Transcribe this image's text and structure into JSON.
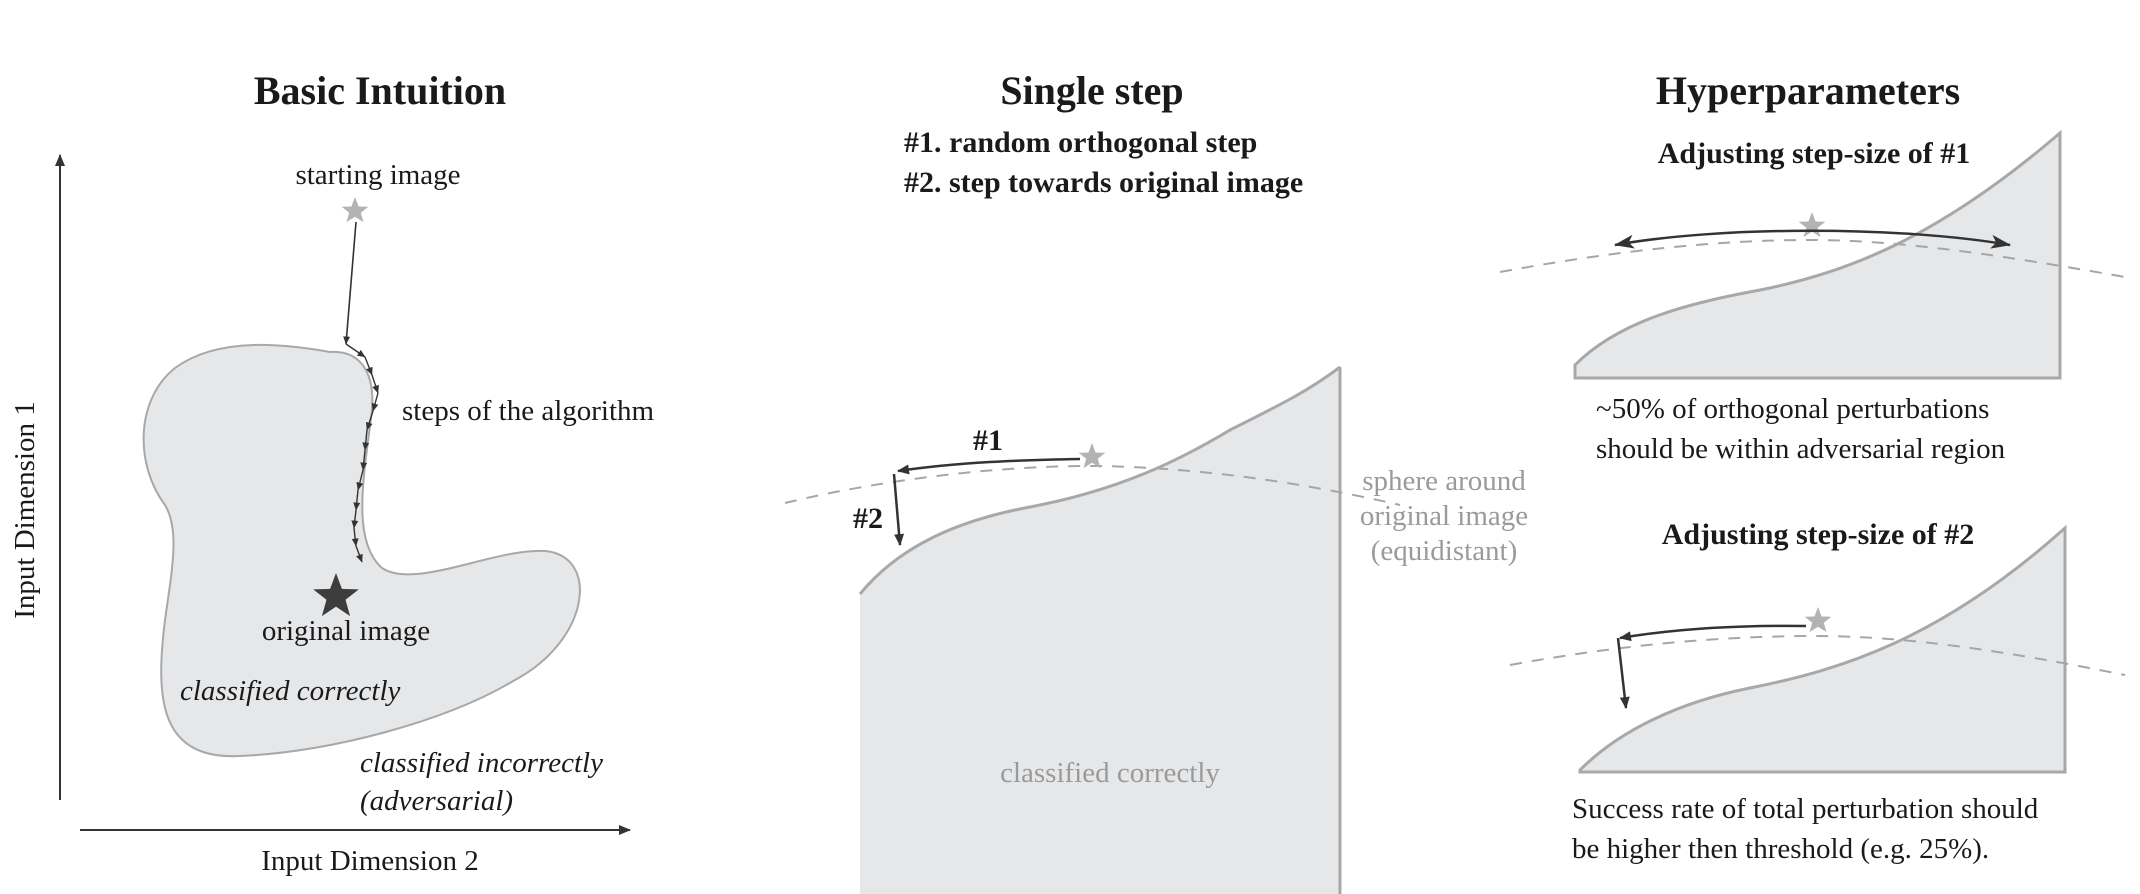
{
  "panel_basic": {
    "title": "Basic Intuition",
    "y_axis_label": "Input Dimension 1",
    "x_axis_label": "Input Dimension 2",
    "starting_image": "starting image",
    "steps_label": "steps of the algorithm",
    "original_image": "original image",
    "classified_correctly": "classified correctly",
    "classified_incorrectly_1": "classified incorrectly",
    "classified_incorrectly_2": "(adversarial)"
  },
  "panel_single": {
    "title": "Single step",
    "step1_desc": "#1. random orthogonal step",
    "step2_desc": "#2. step towards original image",
    "step1_tag": "#1",
    "step2_tag": "#2",
    "sphere_1": "sphere around",
    "sphere_2": "original image",
    "sphere_3": "(equidistant)",
    "classified_correctly": "classified correctly"
  },
  "panel_hyper": {
    "title": "Hyperparameters",
    "adj1_title": "Adjusting step-size of #1",
    "adj1_note_1": "~50% of orthogonal perturbations",
    "adj1_note_2": "should be within adversarial region",
    "adj2_title": "Adjusting step-size of #2",
    "adj2_note_1": "Success rate of total perturbation should",
    "adj2_note_2": "be higher then threshold (e.g. 25%)."
  },
  "colors": {
    "region_fill": "#e6e7e9",
    "region_stroke": "#a8a8a8",
    "arrow": "#333333",
    "star_light": "#b3b3b3",
    "star_dark": "#3d3d3d",
    "dashed": "#a6a6a6"
  }
}
